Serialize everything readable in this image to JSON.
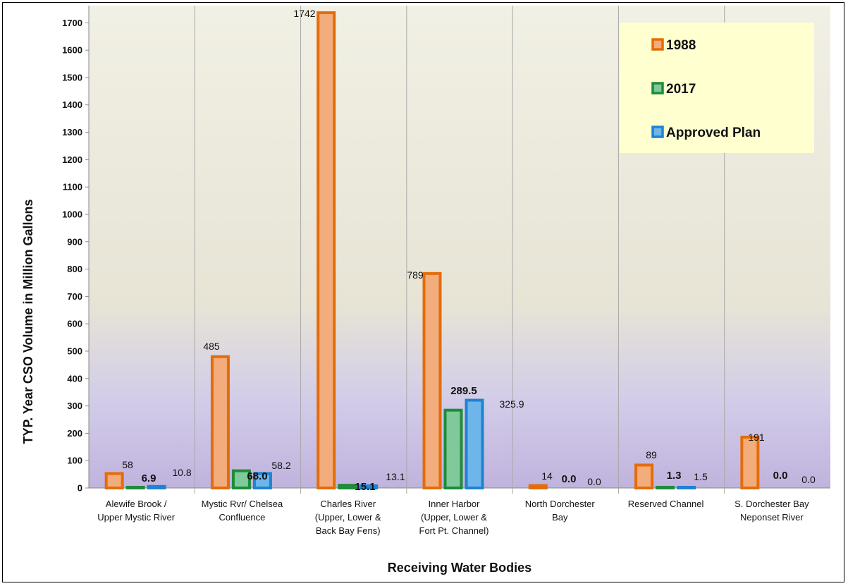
{
  "chart_data": {
    "type": "bar",
    "ylabel": "TYP. Year CSO Volume in Million Gallons",
    "xlabel": "Receiving Water Bodies",
    "ylim": [
      0,
      1750
    ],
    "yticks": [
      0,
      100,
      200,
      300,
      400,
      500,
      600,
      700,
      800,
      900,
      1000,
      1100,
      1200,
      1300,
      1400,
      1500,
      1600,
      1700
    ],
    "legend_position": "top-right",
    "grid": "vertical separators",
    "categories": [
      [
        "Alewife Brook /",
        "Upper Mystic River"
      ],
      [
        "Mystic Rvr/ Chelsea",
        "Confluence"
      ],
      [
        "Charles River",
        "(Upper, Lower &",
        "Back Bay Fens)"
      ],
      [
        "Inner Harbor",
        "(Upper, Lower &",
        "Fort Pt. Channel)"
      ],
      [
        "North Dorchester",
        "Bay"
      ],
      [
        "Reserved Channel"
      ],
      [
        "S. Dorchester Bay",
        "Neponset River"
      ]
    ],
    "series": [
      {
        "name": "1988",
        "color": "#E46C0A",
        "fill": "#F3AC7B",
        "values": [
          58,
          485,
          1742,
          789,
          14,
          89,
          191
        ],
        "labels": [
          "58",
          "485",
          "1742",
          "789",
          "14",
          "89",
          "191"
        ]
      },
      {
        "name": "2017",
        "color": "#1E8C3A",
        "fill": "#7FC99A",
        "values": [
          6.9,
          68.0,
          15.1,
          289.5,
          0.0,
          1.3,
          0.0
        ],
        "labels": [
          "6.9",
          "68.0",
          "15.1",
          "289.5",
          "0.0",
          "1.3",
          "0.0"
        ]
      },
      {
        "name": "Approved Plan",
        "color": "#1F82D2",
        "fill": "#6EB6EA",
        "values": [
          10.8,
          58.2,
          13.1,
          325.9,
          0.0,
          1.5,
          0.0
        ],
        "labels": [
          "10.8",
          "58.2",
          "13.1",
          "325.9",
          "0.0",
          "1.5",
          "0.0"
        ]
      }
    ]
  }
}
